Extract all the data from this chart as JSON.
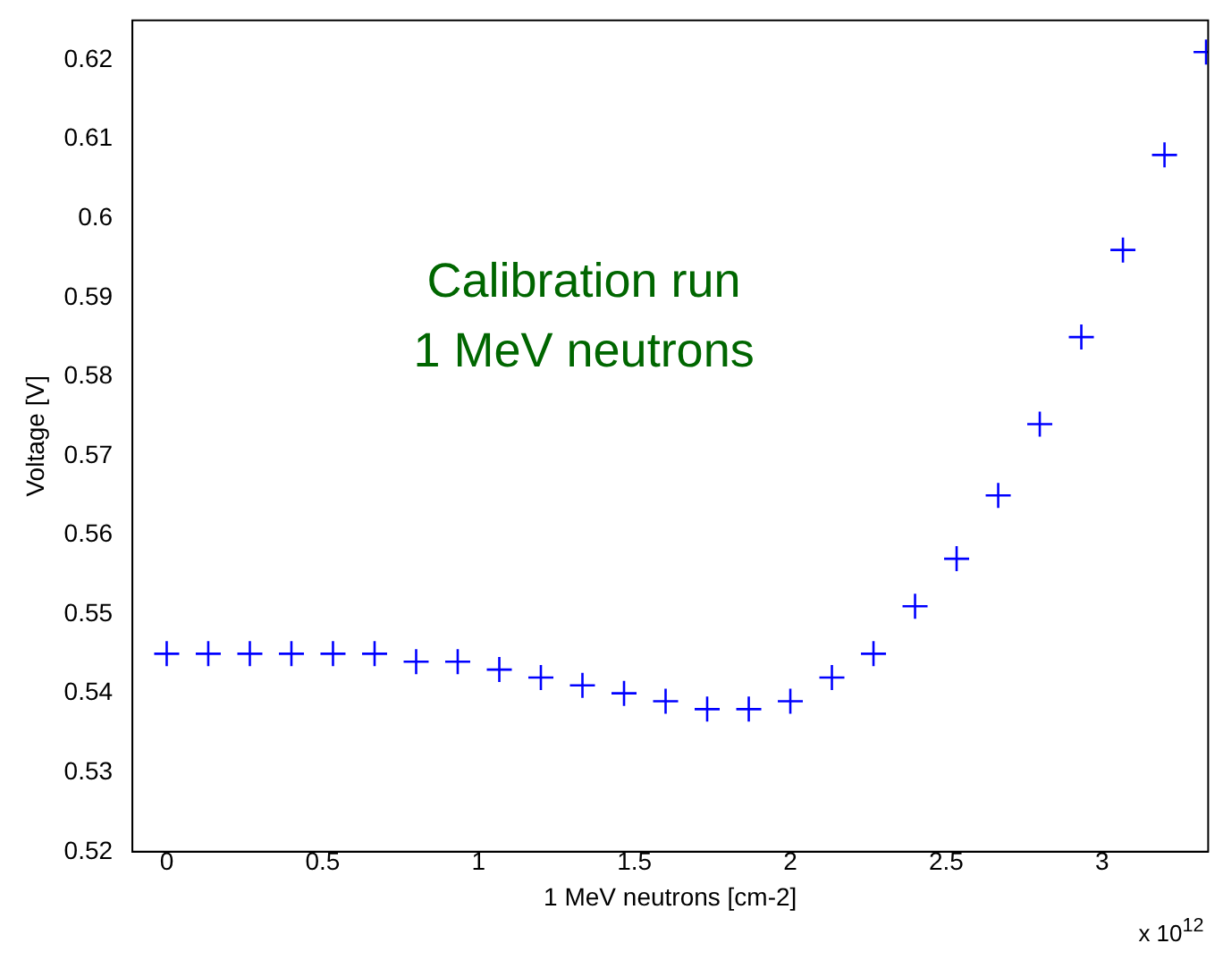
{
  "chart_data": {
    "type": "scatter",
    "xlabel": "1 MeV neutrons [cm-2]",
    "ylabel": "Voltage [V]",
    "x": [
      0,
      0.1333,
      0.2667,
      0.4,
      0.5333,
      0.6667,
      0.8,
      0.9333,
      1.0667,
      1.2,
      1.3333,
      1.4667,
      1.6,
      1.7333,
      1.8667,
      2,
      2.1333,
      2.2667,
      2.4,
      2.5333,
      2.6667,
      2.8,
      2.9333,
      3.0667,
      3.2,
      3.3333
    ],
    "series": [
      {
        "color": "#0000ff",
        "values": [
          0.545,
          0.545,
          0.545,
          0.545,
          0.545,
          0.545,
          0.544,
          0.544,
          0.543,
          0.542,
          0.541,
          0.54,
          0.539,
          0.538,
          0.538,
          0.539,
          0.542,
          0.545,
          0.551,
          0.557,
          0.565,
          0.574,
          0.585,
          0.596,
          0.608,
          0.621
        ]
      }
    ],
    "xlim": [
      -0.11,
      3.34
    ],
    "xticks": [
      0,
      0.5,
      1,
      1.5,
      2,
      2.5,
      3
    ],
    "ylim": [
      0.52,
      0.625
    ],
    "yticks": [
      0.52,
      0.53,
      0.54,
      0.55,
      0.56,
      0.57,
      0.58,
      0.59,
      0.6,
      0.61,
      0.62
    ],
    "annotations": [
      "Calibration run",
      "1 MeV neutrons",
      "x 10$^{12}$"
    ],
    "marker": "cross",
    "grid": false,
    "legend": false
  }
}
